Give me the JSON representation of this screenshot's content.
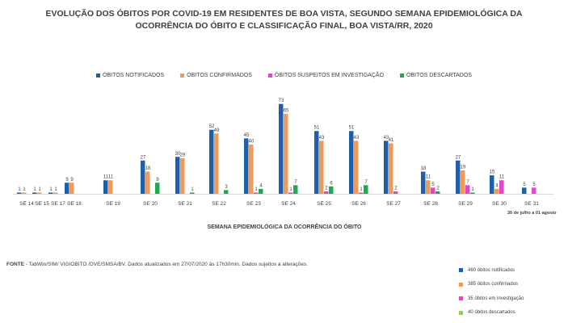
{
  "title_line1": "EVOLUÇÃO DOS ÓBITOS POR COVID-19 EM RESIDENTES DE BOA VISTA, SEGUNDO SEMANA EPIDEMIOLÓGICA DA",
  "title_line2": "OCORRÊNCIA DO ÓBITO E CLASSIFICAÇÃO FINAL, BOA VISTA/RR, 2020",
  "extra_note": "26 de julho a 01 agosto",
  "fonte_label": "FONTE",
  "fonte_text": " - TabWin/SIM/ VIGIOBITO /DVE/SMSA/BV.  Dados atualizados em 27/07/2020 às 17h30min. Dados sujeitos a alterações.",
  "summary": [
    {
      "text": "460 óbitos notificados",
      "color": "#1f5fa8"
    },
    {
      "text": "385 óbitos confirmados",
      "color": "#ee9a5a"
    },
    {
      "text": "35 óbitos em investigação",
      "color": "#e645c8"
    },
    {
      "text": "40 óbitos descartados",
      "color": "#8ed14a"
    }
  ],
  "chart_data": {
    "type": "bar",
    "categories": [
      "SE 14",
      "SE 15",
      "SE 17",
      "SE 18",
      "SE 19",
      "SE 20",
      "SE 21",
      "SE 22",
      "SE 23",
      "SE 24",
      "SE 25",
      "SE 26",
      "SE 27",
      "SE 28",
      "SE 29",
      "SE 30",
      "SE 31"
    ],
    "xlabel": "SEMANA EPIDEMIOLÓGICA DA OCORRÊNCIA DO ÓBITO",
    "ylabel": "",
    "ylim": [
      0,
      80
    ],
    "grid": false,
    "legend_position": "top-center",
    "series": [
      {
        "name": "ÓBITOS NOTIFICADOS",
        "color": "#1f5fa8",
        "values": [
          1,
          1,
          1,
          9,
          11,
          27,
          30,
          52,
          45,
          73,
          51,
          51,
          43,
          18,
          27,
          15,
          5
        ]
      },
      {
        "name": "ÓBITOS CONFIRMADOS",
        "color": "#ee9a5a",
        "values": [
          1,
          1,
          1,
          9,
          11,
          18,
          29,
          49,
          40,
          65,
          43,
          43,
          41,
          11,
          19,
          4,
          null
        ]
      },
      {
        "name": "ÓBITOS SUSPEITOS EM INVESTIGAÇÃO",
        "color": "#e645c8",
        "values": [
          null,
          null,
          null,
          null,
          null,
          null,
          null,
          null,
          1,
          1,
          2,
          1,
          2,
          5,
          7,
          11,
          5
        ]
      },
      {
        "name": "ÓBITOS DESCARTADOS",
        "color": "#21a852",
        "values": [
          null,
          null,
          null,
          null,
          null,
          9,
          1,
          3,
          4,
          7,
          6,
          7,
          null,
          2,
          1,
          null,
          null
        ]
      }
    ]
  }
}
